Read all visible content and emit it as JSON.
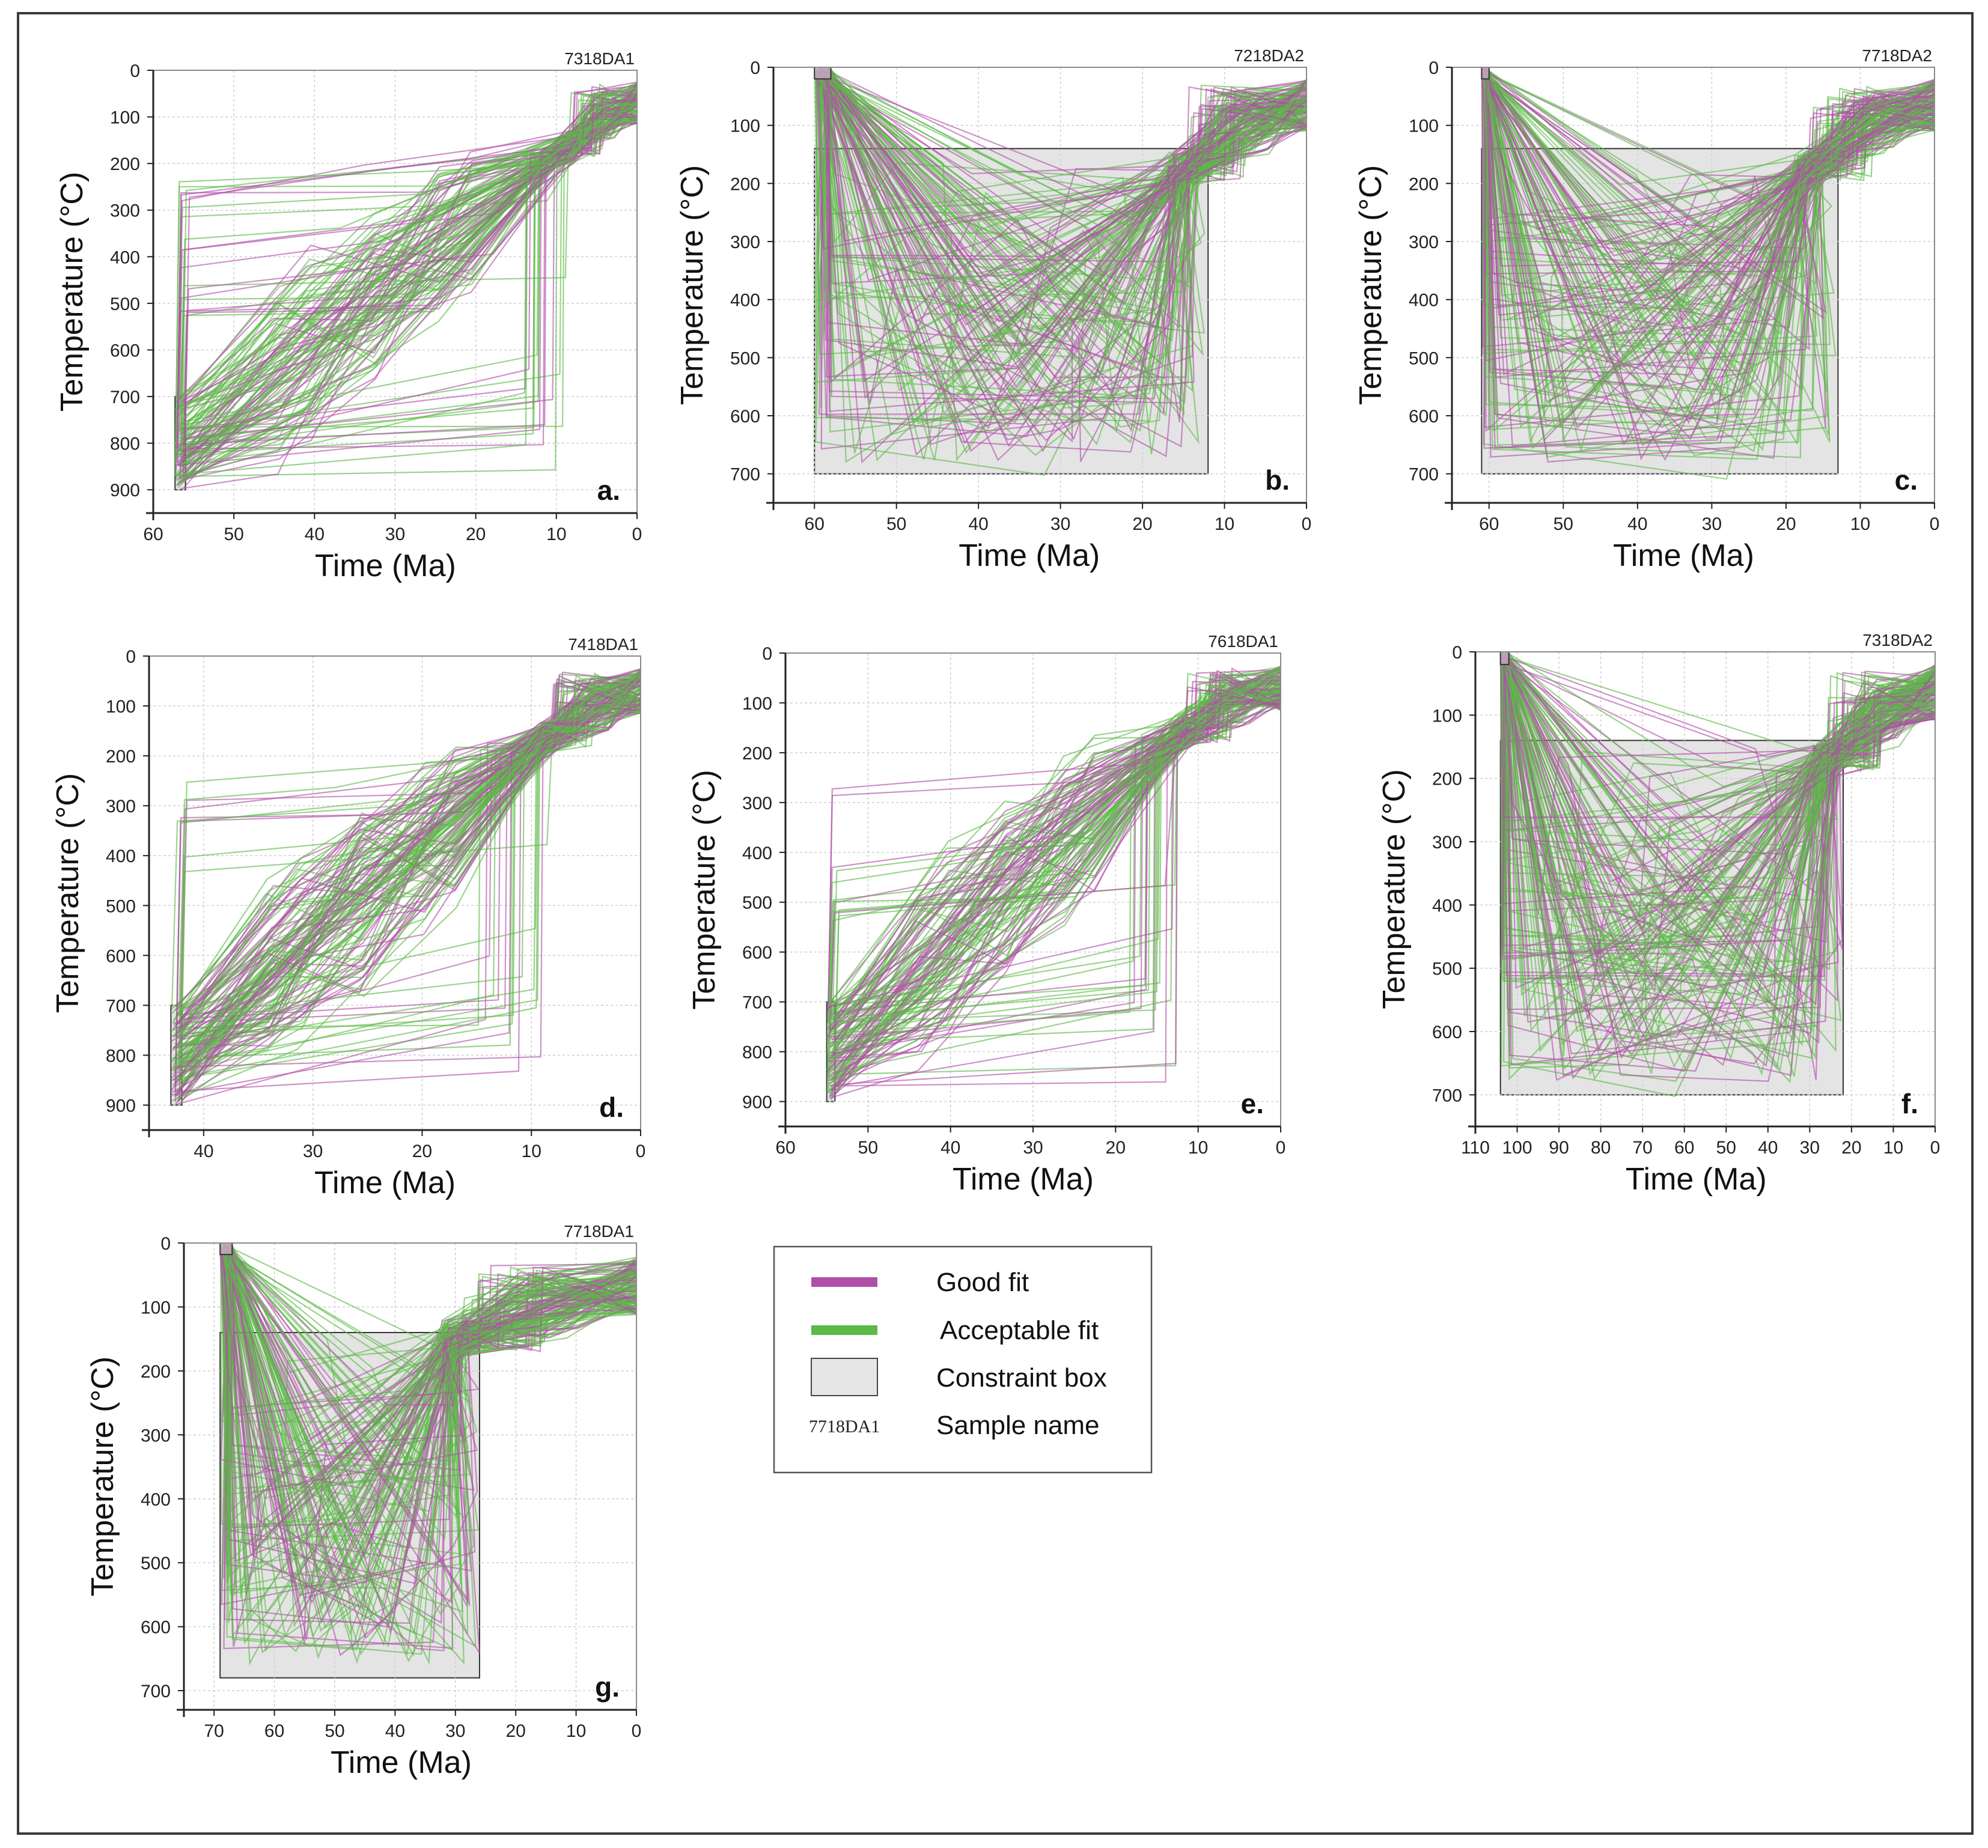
{
  "chart_data": [
    {
      "type": "line",
      "panel": "a.",
      "sample": "7318DA1",
      "xlabel": "Time (Ma)",
      "ylabel": "Temperature (°C)",
      "xlim": [
        60,
        0
      ],
      "ylim": [
        0,
        950
      ],
      "xticks": [
        60,
        50,
        40,
        30,
        20,
        10,
        0
      ],
      "yticks": [
        0,
        100,
        200,
        300,
        400,
        500,
        600,
        700,
        800,
        900
      ],
      "constraint_box": {
        "t": [
          57.3,
          56.0
        ],
        "T": [
          700,
          900
        ]
      },
      "pinch": {
        "t": 8.5,
        "T": 165
      },
      "end": {
        "t": 0,
        "T": 25
      },
      "style": "box_first",
      "series": [
        {
          "name": "Good fit",
          "color": "#b04fa8",
          "n": 55
        },
        {
          "name": "Acceptable fit",
          "color": "#5cba47",
          "n": 85
        }
      ]
    },
    {
      "type": "line",
      "panel": "b.",
      "sample": "7218DA2",
      "xlabel": "Time (Ma)",
      "ylabel": "Temperature (°C)",
      "xlim": [
        65,
        0
      ],
      "ylim": [
        0,
        750
      ],
      "xticks": [
        60,
        50,
        40,
        30,
        20,
        10,
        0
      ],
      "yticks": [
        0,
        100,
        200,
        300,
        400,
        500,
        600,
        700
      ],
      "constraint_box": {
        "t": [
          60,
          12
        ],
        "T": [
          140,
          700
        ]
      },
      "small_box": {
        "t": [
          60,
          58
        ],
        "T": [
          0,
          20
        ]
      },
      "pinch": {
        "t": 15,
        "T": 175
      },
      "end": {
        "t": 0,
        "T": 20
      },
      "style": "box_wide",
      "series": [
        {
          "name": "Good fit",
          "color": "#b04fa8",
          "n": 70
        },
        {
          "name": "Acceptable fit",
          "color": "#5cba47",
          "n": 90
        }
      ]
    },
    {
      "type": "line",
      "panel": "c.",
      "sample": "7718DA2",
      "xlabel": "Time (Ma)",
      "ylabel": "Temperature (°C)",
      "xlim": [
        65,
        0
      ],
      "ylim": [
        0,
        750
      ],
      "xticks": [
        60,
        50,
        40,
        30,
        20,
        10,
        0
      ],
      "yticks": [
        0,
        100,
        200,
        300,
        400,
        500,
        600,
        700
      ],
      "constraint_box": {
        "t": [
          61,
          13
        ],
        "T": [
          140,
          700
        ]
      },
      "small_box": {
        "t": [
          61,
          60
        ],
        "T": [
          0,
          20
        ]
      },
      "pinch": {
        "t": 17,
        "T": 175
      },
      "end": {
        "t": 0,
        "T": 20
      },
      "style": "box_wide",
      "series": [
        {
          "name": "Good fit",
          "color": "#b04fa8",
          "n": 70
        },
        {
          "name": "Acceptable fit",
          "color": "#5cba47",
          "n": 90
        }
      ]
    },
    {
      "type": "line",
      "panel": "d.",
      "sample": "7418DA1",
      "xlabel": "Time (Ma)",
      "ylabel": "Temperature (°C)",
      "xlim": [
        45,
        0
      ],
      "ylim": [
        0,
        950
      ],
      "xticks": [
        40,
        30,
        20,
        10,
        0
      ],
      "yticks": [
        0,
        100,
        200,
        300,
        400,
        500,
        600,
        700,
        800,
        900
      ],
      "constraint_box": {
        "t": [
          43,
          42
        ],
        "T": [
          700,
          900
        ]
      },
      "pinch": {
        "t": 8.5,
        "T": 165
      },
      "end": {
        "t": 0,
        "T": 25
      },
      "style": "box_first",
      "series": [
        {
          "name": "Good fit",
          "color": "#b04fa8",
          "n": 60
        },
        {
          "name": "Acceptable fit",
          "color": "#5cba47",
          "n": 90
        }
      ]
    },
    {
      "type": "line",
      "panel": "e.",
      "sample": "7618DA1",
      "xlabel": "Time (Ma)",
      "ylabel": "Temperature (°C)",
      "xlim": [
        60,
        0
      ],
      "ylim": [
        0,
        950
      ],
      "xticks": [
        60,
        50,
        40,
        30,
        20,
        10,
        0
      ],
      "yticks": [
        0,
        100,
        200,
        300,
        400,
        500,
        600,
        700,
        800,
        900
      ],
      "constraint_box": {
        "t": [
          55,
          54
        ],
        "T": [
          700,
          900
        ]
      },
      "pinch": {
        "t": 12,
        "T": 160
      },
      "end": {
        "t": 0,
        "T": 25
      },
      "style": "box_first",
      "series": [
        {
          "name": "Good fit",
          "color": "#b04fa8",
          "n": 60
        },
        {
          "name": "Acceptable fit",
          "color": "#5cba47",
          "n": 80
        }
      ]
    },
    {
      "type": "line",
      "panel": "f.",
      "sample": "7318DA2",
      "xlabel": "Time (Ma)",
      "ylabel": "Temperature (°C)",
      "xlim": [
        110,
        0
      ],
      "ylim": [
        0,
        750
      ],
      "xticks": [
        110,
        100,
        90,
        80,
        70,
        60,
        50,
        40,
        30,
        20,
        10,
        0
      ],
      "yticks": [
        0,
        100,
        200,
        300,
        400,
        500,
        600,
        700
      ],
      "constraint_box": {
        "t": [
          104,
          22
        ],
        "T": [
          140,
          700
        ]
      },
      "small_box": {
        "t": [
          104,
          102
        ],
        "T": [
          0,
          20
        ]
      },
      "pinch": {
        "t": 26,
        "T": 170
      },
      "end": {
        "t": 0,
        "T": 20
      },
      "style": "box_wide",
      "series": [
        {
          "name": "Good fit",
          "color": "#b04fa8",
          "n": 70
        },
        {
          "name": "Acceptable fit",
          "color": "#5cba47",
          "n": 95
        }
      ]
    },
    {
      "type": "line",
      "panel": "g.",
      "sample": "7718DA1",
      "xlabel": "Time (Ma)",
      "ylabel": "Temperature (°C)",
      "xlim": [
        75,
        0
      ],
      "ylim": [
        0,
        730
      ],
      "xticks": [
        70,
        60,
        50,
        40,
        30,
        20,
        10,
        0
      ],
      "yticks": [
        0,
        100,
        200,
        300,
        400,
        500,
        600,
        700
      ],
      "constraint_box": {
        "t": [
          69,
          26
        ],
        "T": [
          140,
          680
        ]
      },
      "small_box": {
        "t": [
          69,
          67
        ],
        "T": [
          0,
          18
        ]
      },
      "pinch": {
        "t": 30,
        "T": 150
      },
      "end": {
        "t": 0,
        "T": 22
      },
      "style": "box_wide",
      "series": [
        {
          "name": "Good fit",
          "color": "#b04fa8",
          "n": 60
        },
        {
          "name": "Acceptable fit",
          "color": "#5cba47",
          "n": 100
        }
      ]
    }
  ],
  "legend": {
    "items": [
      {
        "label": "Good fit",
        "kind": "line",
        "color": "#b04fa8"
      },
      {
        "label": "Acceptable fit",
        "kind": "line",
        "color": "#5cba47"
      },
      {
        "label": "Constraint box",
        "kind": "box",
        "color": "#e6e6e6"
      },
      {
        "label": "Sample name",
        "kind": "sample",
        "sample": "7718DA1"
      }
    ]
  }
}
